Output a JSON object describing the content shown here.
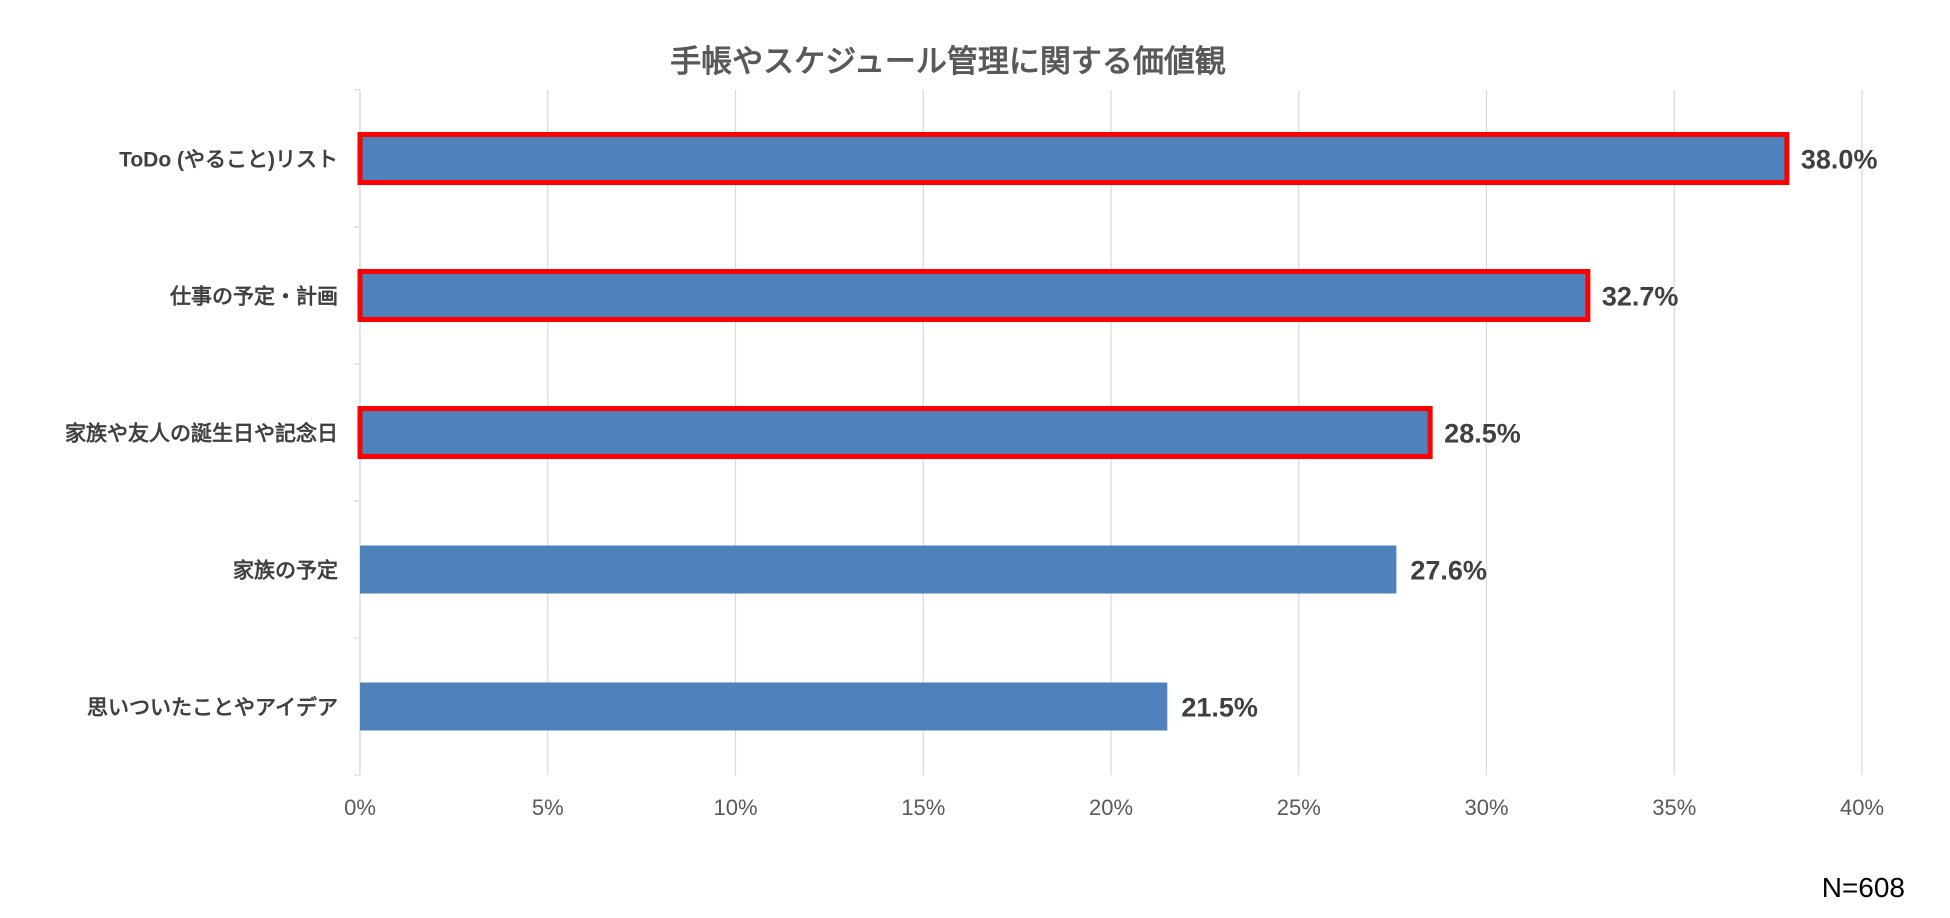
{
  "chart_data": {
    "type": "bar",
    "orientation": "horizontal",
    "title": "手帳やスケジュール管理に関する価値観",
    "categories": [
      "ToDo (やること)リスト",
      "仕事の予定・計画",
      "家族や友人の誕生日や記念日",
      "家族の予定",
      "思いついたことやアイデア"
    ],
    "values": [
      38.0,
      32.7,
      28.5,
      27.6,
      21.5
    ],
    "data_labels": [
      "38.0%",
      "32.7%",
      "28.5%",
      "27.6%",
      "21.5%"
    ],
    "highlighted": [
      true,
      true,
      true,
      false,
      false
    ],
    "xlim": [
      0,
      40
    ],
    "xticks": [
      "0%",
      "5%",
      "10%",
      "15%",
      "20%",
      "25%",
      "30%",
      "35%",
      "40%"
    ],
    "grid": true,
    "bar_color": "#4f81bd",
    "highlight_color": "#ff0000"
  },
  "note": "N=608"
}
